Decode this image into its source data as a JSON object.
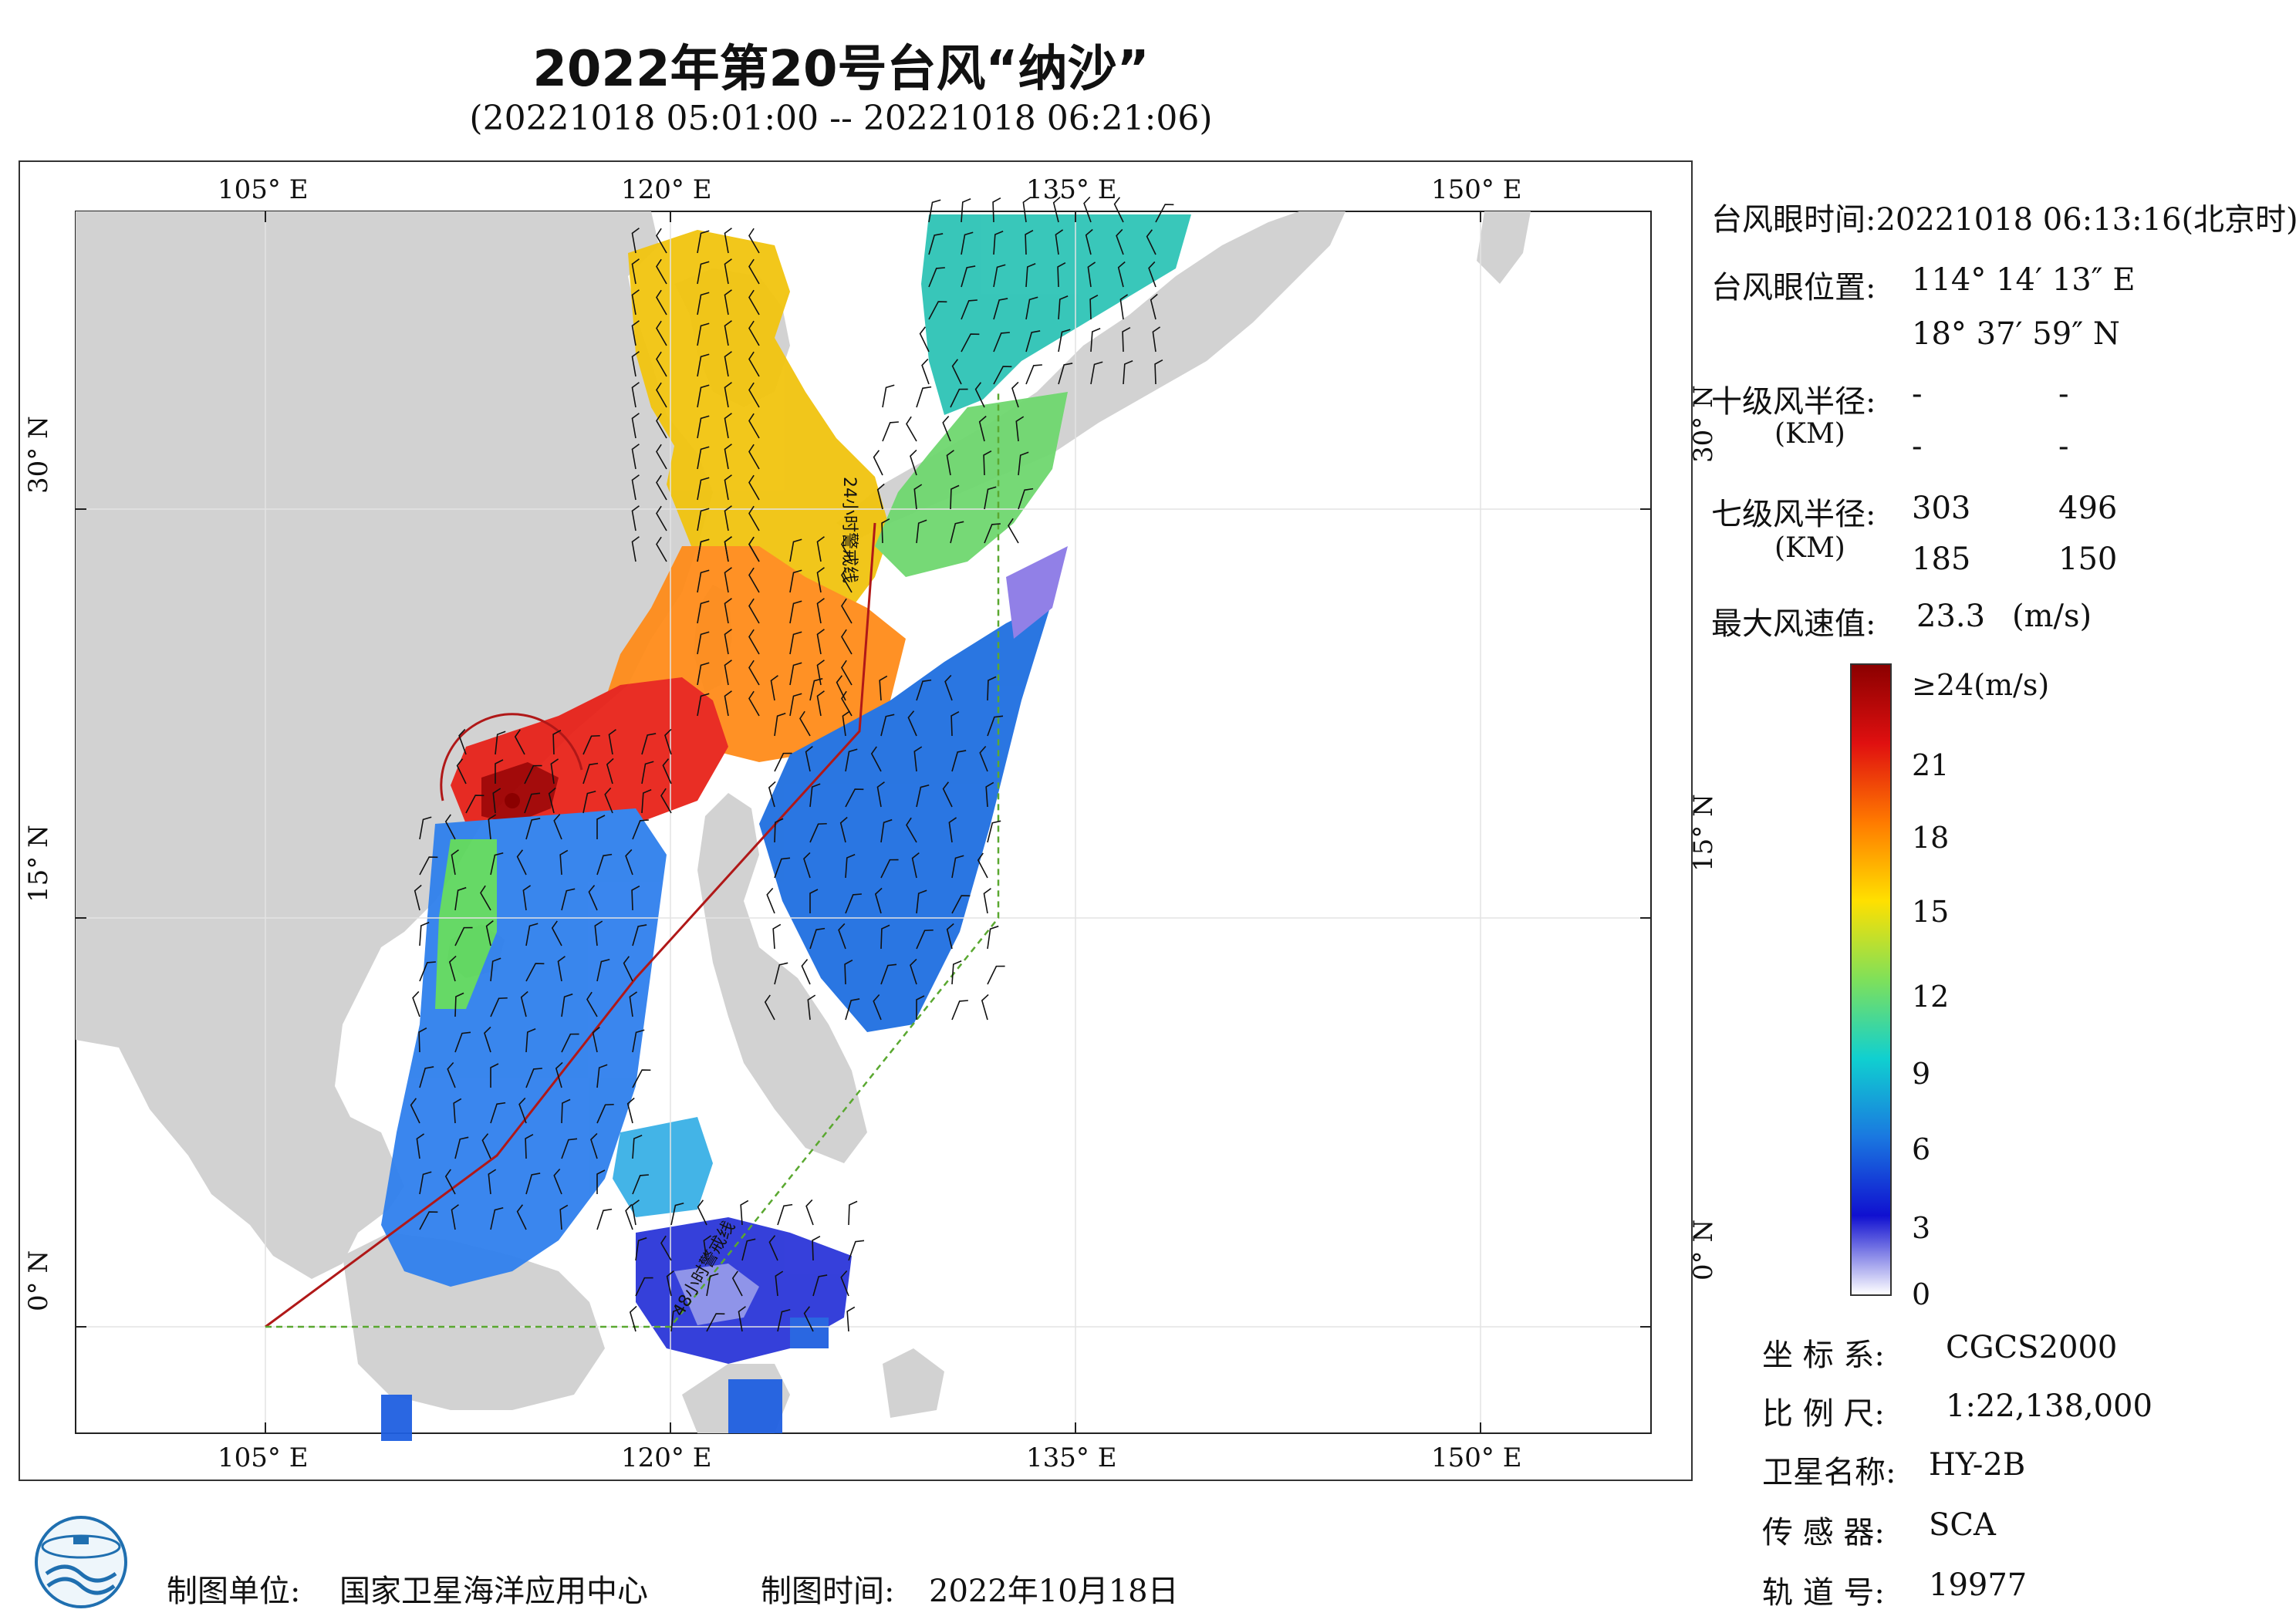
{
  "title": "2022年第20号台风“纳沙”",
  "subtitle": "(20221018 05:01:00 -- 20221018 06:21:06)",
  "map": {
    "lon_labels_top": [
      "105° E",
      "120° E",
      "135° E",
      "150° E"
    ],
    "lon_labels_bottom": [
      "105° E",
      "120° E",
      "135° E",
      "150° E"
    ],
    "lat_labels": [
      "30° N",
      "15° N",
      "0° N"
    ],
    "line_label_24h": "24小时警戒线",
    "line_label_48h": "48小时警戒线",
    "colors": {
      "land": "#d2d2d2",
      "sea": "#ffffff",
      "warn24": "#b01818",
      "warn48": "#5aa830"
    }
  },
  "info": {
    "eye_time_label": "台风眼时间:",
    "eye_time_value": "20221018 06:13:16(北京时)",
    "eye_pos_label": "台风眼位置:",
    "eye_lon": "114° 14′ 13″ E",
    "eye_lat": "18° 37′ 59″ N",
    "r10_label": "十级风半径:",
    "r10_unit": "(KM)",
    "r10_values": [
      "-",
      "-",
      "-",
      "-"
    ],
    "r7_label": "七级风半径:",
    "r7_unit": "(KM)",
    "r7_values": [
      "303",
      "496",
      "185",
      "150"
    ],
    "max_wind_label": "最大风速值:",
    "max_wind_value": "23.3",
    "max_wind_unit": "(m/s)"
  },
  "colorbar": {
    "labels": [
      "≥24(m/s)",
      "21",
      "18",
      "15",
      "12",
      "9",
      "6",
      "3",
      "0"
    ],
    "stops": [
      "#8b0000",
      "#e01010",
      "#ff7a00",
      "#ffe000",
      "#7fe05a",
      "#10d0d0",
      "#1a78e0",
      "#1010d0",
      "#ffffff"
    ]
  },
  "meta": {
    "crs_label": "坐 标 系:",
    "crs_value": "CGCS2000",
    "scale_label": "比 例 尺:",
    "scale_value": "1:22,138,000",
    "sat_label": "卫星名称:",
    "sat_value": "HY-2B",
    "sensor_label": "传 感 器:",
    "sensor_value": "SCA",
    "orbit_label": "轨 道 号:",
    "orbit_value": "19977"
  },
  "footer": {
    "maker_label": "制图单位:",
    "maker_value": "国家卫星海洋应用中心",
    "date_label": "制图时间:",
    "date_value": "2022年10月18日",
    "logo_icon": "nsoas-logo-icon"
  }
}
